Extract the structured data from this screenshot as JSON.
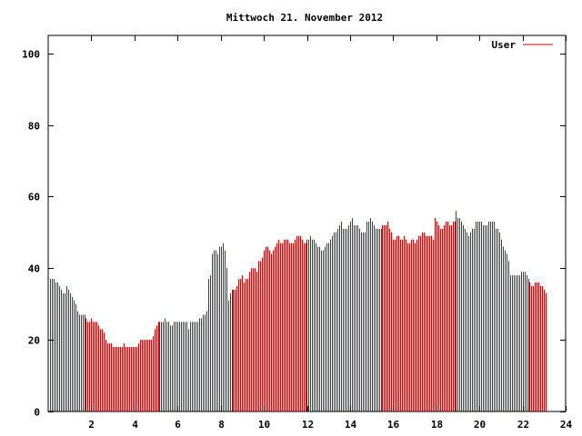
{
  "chart_data": {
    "type": "bar",
    "title": "Mittwoch 21. November 2012",
    "xlabel": "",
    "ylabel": "",
    "xlim": [
      0,
      24
    ],
    "ylim": [
      0,
      105
    ],
    "xticks": [
      2,
      4,
      6,
      8,
      10,
      12,
      14,
      16,
      18,
      20,
      22,
      24
    ],
    "yticks": [
      0,
      20,
      40,
      60,
      80,
      100
    ],
    "legend_position": "top-right",
    "grid": false,
    "series": [
      {
        "name": "User",
        "color": "#cc0000",
        "interval_minutes": 5,
        "start_hour": 0.0833,
        "values": [
          37,
          37,
          37,
          36,
          36,
          35,
          34,
          33,
          33,
          35,
          34,
          33,
          32,
          31,
          30,
          28,
          27,
          27,
          27,
          27,
          26,
          25,
          25,
          26,
          25,
          25,
          25,
          24,
          23,
          23,
          22,
          20,
          19,
          19,
          19,
          18,
          18,
          18,
          18,
          18,
          18,
          19,
          18,
          18,
          18,
          18,
          18,
          18,
          18,
          19,
          20,
          20,
          20,
          20,
          20,
          20,
          20,
          21,
          23,
          24,
          25,
          25,
          25,
          25,
          26,
          25,
          25,
          24,
          24,
          25,
          25,
          25,
          25,
          25,
          25,
          25,
          25,
          23,
          25,
          25,
          25,
          25,
          25,
          26,
          26,
          27,
          27,
          28,
          37,
          38,
          44,
          45,
          45,
          44,
          46,
          46,
          47,
          45,
          40,
          31,
          33,
          34,
          34,
          34,
          35,
          37,
          37,
          38,
          36,
          37,
          37,
          39,
          40,
          40,
          40,
          39,
          42,
          42,
          43,
          45,
          46,
          46,
          45,
          44,
          45,
          46,
          47,
          48,
          47,
          47,
          48,
          48,
          48,
          47,
          47,
          47,
          48,
          49,
          49,
          49,
          48,
          47,
          47,
          48,
          48,
          49,
          48,
          48,
          47,
          46,
          46,
          45,
          45,
          46,
          47,
          47,
          48,
          49,
          50,
          50,
          51,
          52,
          53,
          51,
          51,
          51,
          52,
          53,
          54,
          52,
          52,
          52,
          51,
          50,
          50,
          50,
          53,
          53,
          54,
          53,
          52,
          51,
          51,
          51,
          51,
          52,
          52,
          52,
          53,
          51,
          50,
          48,
          48,
          49,
          49,
          48,
          48,
          49,
          48,
          47,
          47,
          48,
          48,
          47,
          48,
          49,
          49,
          50,
          50,
          49,
          49,
          49,
          49,
          48,
          54,
          53,
          52,
          51,
          51,
          52,
          53,
          53,
          52,
          52,
          53,
          53,
          56,
          54,
          54,
          53,
          52,
          51,
          50,
          49,
          50,
          51,
          51,
          53,
          53,
          53,
          53,
          52,
          52,
          52,
          53,
          53,
          53,
          53,
          51,
          51,
          50,
          48,
          46,
          45,
          44,
          42,
          38,
          38,
          38,
          38,
          38,
          38,
          39,
          39,
          39,
          38,
          37,
          36,
          35,
          35,
          36,
          36,
          36,
          35,
          35,
          34,
          33
        ]
      }
    ]
  }
}
